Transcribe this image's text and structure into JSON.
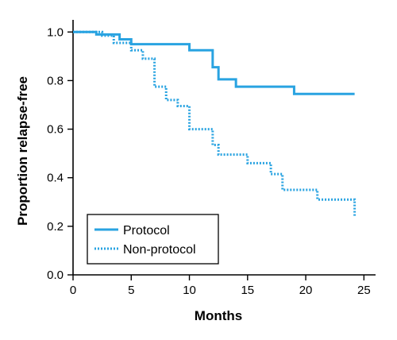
{
  "chart_data": {
    "type": "line",
    "subtype": "step",
    "title": "",
    "xlabel": "Months",
    "ylabel": "Proportion relapse-free",
    "xlim": [
      0,
      26
    ],
    "ylim": [
      0,
      1.05
    ],
    "xticks": [
      0,
      5,
      10,
      15,
      20,
      25
    ],
    "xtick_labels": [
      "0",
      "5",
      "10",
      "15",
      "20",
      "25"
    ],
    "yticks": [
      0,
      0.2,
      0.4,
      0.6,
      0.8,
      1.0
    ],
    "ytick_labels": [
      "0.0",
      "0.2",
      "0.4",
      "0.6",
      "0.8",
      "1.0"
    ],
    "grid": false,
    "legend_position": "bottom-left",
    "series": [
      {
        "name": "Protocol",
        "style": "solid",
        "color": "#29a3e1",
        "x": [
          0,
          2,
          4,
          5,
          10,
          12,
          12.5,
          13,
          14,
          19,
          24.2
        ],
        "y": [
          1.0,
          0.99,
          0.97,
          0.95,
          0.925,
          0.855,
          0.805,
          0.805,
          0.775,
          0.745,
          0.745
        ]
      },
      {
        "name": "Non-protocol",
        "style": "dotted",
        "color": "#29a3e1",
        "x": [
          0,
          2.5,
          3.5,
          5,
          6,
          7,
          8,
          9,
          10,
          12,
          12.5,
          14,
          15,
          17,
          18,
          21,
          24,
          24.2
        ],
        "y": [
          1.0,
          0.985,
          0.955,
          0.925,
          0.89,
          0.775,
          0.72,
          0.695,
          0.6,
          0.535,
          0.495,
          0.495,
          0.46,
          0.415,
          0.35,
          0.31,
          0.31,
          0.24
        ]
      }
    ]
  }
}
